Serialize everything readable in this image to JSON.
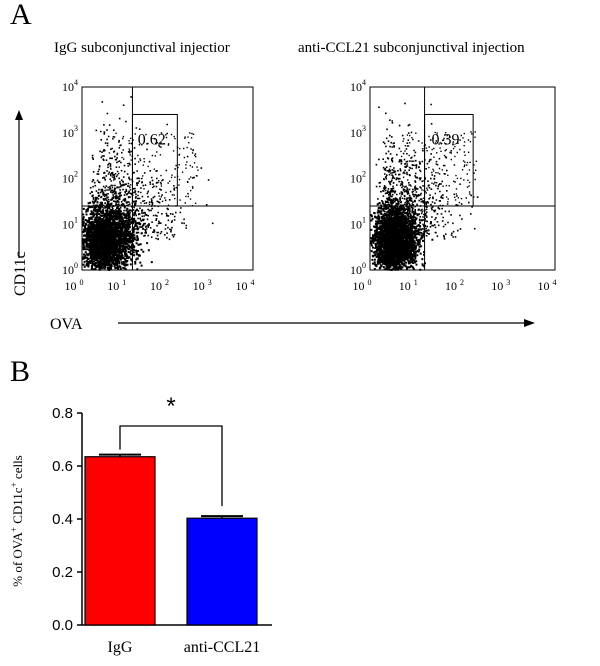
{
  "panel_a": {
    "label": "A",
    "y_axis_label": "CD11c",
    "x_axis_label": "OVA",
    "tick_labels": [
      "10",
      "10",
      "10",
      "10",
      "10"
    ],
    "tick_exponents": [
      "0",
      "1",
      "2",
      "3",
      "4"
    ],
    "plots": [
      {
        "title": "IgG subconjunctival injectior",
        "gate_value": "0.62",
        "seed": 11,
        "spread": 1.0
      },
      {
        "title": "anti-CCL21 subconjunctival injection",
        "gate_value": "0.39",
        "seed": 29,
        "spread": 0.85
      }
    ]
  },
  "panel_b": {
    "label": "B",
    "significance": "*"
  },
  "chart_data": {
    "type": "bar",
    "categories": [
      "IgG",
      "anti-CCL21"
    ],
    "values": [
      0.635,
      0.403
    ],
    "errors": [
      0.008,
      0.008
    ],
    "colors": [
      "#ff0000",
      "#0000ff"
    ],
    "ylabel_parts": [
      "% of OVA",
      "+",
      " CD11c",
      "+",
      " cells"
    ],
    "ylim": [
      0,
      0.8
    ],
    "yticks": [
      "0.0",
      "0.2",
      "0.4",
      "0.6",
      "0.8"
    ],
    "ytick_values": [
      0,
      0.2,
      0.4,
      0.6,
      0.8
    ]
  }
}
